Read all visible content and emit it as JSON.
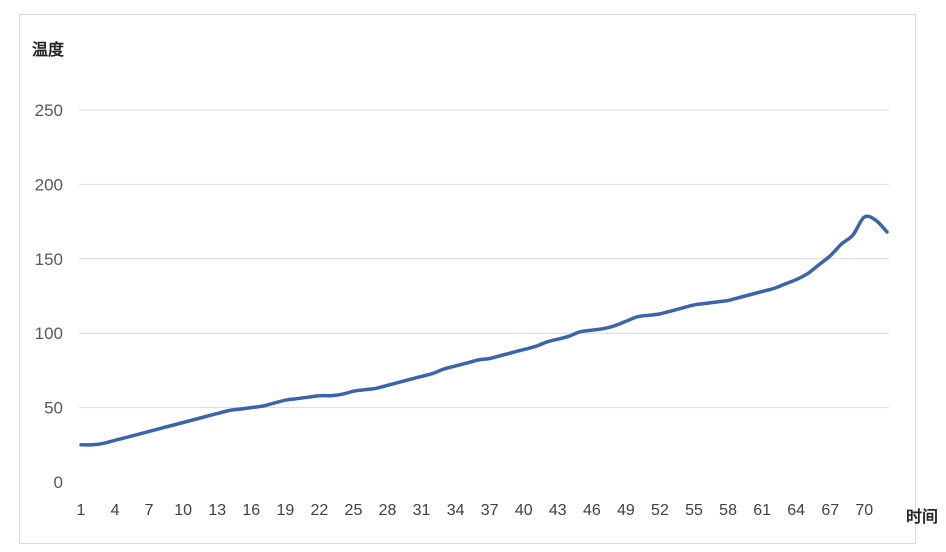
{
  "chart_data": {
    "type": "line",
    "title": "",
    "ylabel": "温度",
    "xlabel": "时间",
    "ylim": [
      0,
      250
    ],
    "yticks": [
      0,
      50,
      100,
      150,
      200,
      250
    ],
    "grid": true,
    "line_color": "#3a64ad",
    "x": [
      1,
      2,
      3,
      4,
      5,
      6,
      7,
      8,
      9,
      10,
      11,
      12,
      13,
      14,
      15,
      16,
      17,
      18,
      19,
      20,
      21,
      22,
      23,
      24,
      25,
      26,
      27,
      28,
      29,
      30,
      31,
      32,
      33,
      34,
      35,
      36,
      37,
      38,
      39,
      40,
      41,
      42,
      43,
      44,
      45,
      46,
      47,
      48,
      49,
      50,
      51,
      52,
      53,
      54,
      55,
      56,
      57,
      58,
      59,
      60,
      61,
      62,
      63,
      64,
      65,
      66,
      67,
      68,
      69,
      70,
      71,
      72
    ],
    "xtick_labels": [
      "1",
      "4",
      "7",
      "10",
      "13",
      "16",
      "19",
      "22",
      "25",
      "28",
      "31",
      "34",
      "37",
      "40",
      "43",
      "46",
      "49",
      "52",
      "55",
      "58",
      "61",
      "64",
      "67",
      "70"
    ],
    "series": [
      {
        "values": [
          25,
          25,
          26,
          28,
          30,
          32,
          34,
          36,
          38,
          40,
          42,
          44,
          46,
          48,
          49,
          50,
          51,
          53,
          55,
          56,
          57,
          58,
          58,
          59,
          61,
          62,
          63,
          65,
          67,
          69,
          71,
          73,
          76,
          78,
          80,
          82,
          83,
          85,
          87,
          89,
          91,
          94,
          96,
          98,
          101,
          102,
          103,
          105,
          108,
          111,
          112,
          113,
          115,
          117,
          119,
          120,
          121,
          122,
          124,
          126,
          128,
          130,
          133,
          136,
          140,
          146,
          152,
          160,
          166,
          178,
          176,
          168
        ]
      }
    ]
  }
}
